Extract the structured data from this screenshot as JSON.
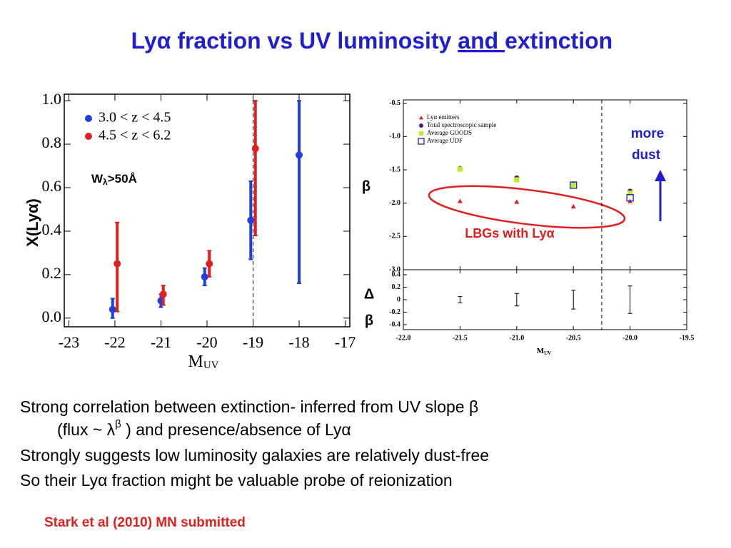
{
  "title": [
    "Lyα fraction vs UV luminosity ",
    "and ",
    "extinction"
  ],
  "body": [
    "Strong correlation between extinction- inferred from UV slope β",
    [
      "(flux ~ λ",
      "β",
      " ) and presence/absence of Lyα"
    ],
    "Strongly suggests low luminosity galaxies are relatively dust-free",
    "So their Lyα fraction might be valuable probe of reionization"
  ],
  "citation": "Stark et al (2010) MN submitted",
  "chart_data": [
    {
      "type": "errorbar",
      "ylabel": "X(Lyα)",
      "xlabel": [
        "M",
        "UV"
      ],
      "annotation": [
        "W",
        "λ",
        ">50Å"
      ],
      "xlim": [
        -23.1,
        -16.9
      ],
      "ylim": [
        -0.04,
        1.03
      ],
      "xticks": [
        -23,
        -22,
        -21,
        -20,
        -19,
        -18,
        -17
      ],
      "yticks": [
        {
          "value": 0,
          "label": "0.0"
        },
        0.2,
        0.4,
        0.6,
        0.8,
        {
          "value": 1,
          "label": "1.0"
        }
      ],
      "vline": -19,
      "legend": "upper left",
      "series": [
        {
          "name": "3.0 < z < 4.5",
          "color": "#1f3fe0",
          "marker": "circle",
          "x": [
            -22.05,
            -21.0,
            -20.05,
            -19.05,
            -18.0
          ],
          "values": [
            0.04,
            0.08,
            0.19,
            0.45,
            0.75
          ],
          "yerr_low": [
            0.04,
            0.03,
            0.04,
            0.18,
            0.59
          ],
          "yerr_high": [
            0.05,
            0.03,
            0.04,
            0.18,
            0.25
          ]
        },
        {
          "name": "4.5 < z < 6.2",
          "color": "#e01f1f",
          "marker": "circle",
          "x": [
            -21.95,
            -20.95,
            -19.95,
            -18.95
          ],
          "values": [
            0.25,
            0.11,
            0.25,
            0.78
          ],
          "yerr_low": [
            0.22,
            0.05,
            0.06,
            0.4
          ],
          "yerr_high": [
            0.19,
            0.04,
            0.06,
            0.22
          ]
        }
      ]
    },
    {
      "type": "scatter",
      "ylabel": "β",
      "annotations": [
        [
          "more",
          "dust"
        ],
        "LBGs with Lyα"
      ],
      "xlim": [
        -22.0,
        -19.5
      ],
      "ylim": [
        -3.0,
        -0.45
      ],
      "xticks": [
        -22.0,
        -21.5,
        -21.0,
        -20.5,
        -20.0,
        -19.5
      ],
      "yticks": [
        -0.5,
        {
          "value": -1,
          "label": "-1.0"
        },
        -1.5,
        {
          "value": -2,
          "label": "-2.0"
        },
        -2.5,
        {
          "value": -3,
          "label": "-3.0"
        }
      ],
      "vline": -20.25,
      "legend": "upper left",
      "series": [
        {
          "name": "Lyα emitters",
          "color": "#e01f1f",
          "marker": "triangle",
          "x": [
            -21.5,
            -21.0,
            -20.5,
            -20.0
          ],
          "values": [
            -1.97,
            -1.98,
            -2.05,
            -1.97
          ]
        },
        {
          "name": "Total spectroscopic sample",
          "color": "#5a1a7a",
          "marker": "circle",
          "x": [
            -21.5,
            -21.0,
            -20.5,
            -20.0
          ],
          "values": [
            -1.48,
            -1.62,
            -1.72,
            -1.82
          ]
        },
        {
          "name": "Average GOODS",
          "color": "#b8f020",
          "marker": "square",
          "x": [
            -21.5,
            -21.0,
            -20.5,
            -20.0
          ],
          "values": [
            -1.49,
            -1.65,
            -1.73,
            -1.85
          ]
        },
        {
          "name": "Average UDF",
          "color": "#2020c0",
          "marker": "open-square",
          "x": [
            -21.5,
            -21.0,
            -20.5,
            -20.0
          ],
          "values": [
            null,
            null,
            -1.73,
            -1.92
          ]
        }
      ]
    },
    {
      "type": "errorbar",
      "ylabel": [
        "Δ",
        "β"
      ],
      "xlabel": [
        "M",
        "UV"
      ],
      "xlim": [
        -22.0,
        -19.5
      ],
      "ylim": [
        -0.48,
        0.48
      ],
      "xticks": [
        {
          "value": -22,
          "label": "-22.0"
        },
        -21.5,
        {
          "value": -21,
          "label": "-21.0"
        },
        -20.5,
        {
          "value": -20,
          "label": "-20.0"
        },
        -19.5
      ],
      "yticks": [
        0.4,
        0.2,
        0,
        -0.2,
        -0.4
      ],
      "vline": -20.25,
      "series": [
        {
          "color": "#000000",
          "x": [
            -21.5,
            -21.0,
            -20.5,
            -20.0
          ],
          "values": [
            0,
            0,
            0,
            0
          ],
          "yerr_low": [
            0.05,
            0.1,
            0.15,
            0.22
          ],
          "yerr_high": [
            0.05,
            0.1,
            0.15,
            0.22
          ]
        }
      ]
    }
  ]
}
